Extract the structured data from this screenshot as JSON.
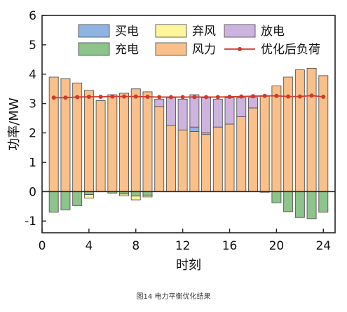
{
  "caption": "图14  电力平衡优化结果",
  "chart_data": {
    "type": "bar",
    "stacked": true,
    "xlabel": "时刻",
    "ylabel": "功率/MW",
    "xlim": [
      0,
      25
    ],
    "ylim": [
      -1.4,
      6
    ],
    "xticks": [
      0,
      4,
      8,
      12,
      16,
      20,
      24
    ],
    "yticks": [
      -1,
      0,
      1,
      2,
      3,
      4,
      5,
      6
    ],
    "legend_position": "top",
    "x": [
      1,
      2,
      3,
      4,
      5,
      6,
      7,
      8,
      9,
      10,
      11,
      12,
      13,
      14,
      15,
      16,
      17,
      18,
      19,
      20,
      21,
      22,
      23,
      24
    ],
    "series": [
      {
        "key": "wind",
        "name": "风力",
        "color": "#F9C08A",
        "values": [
          3.9,
          3.85,
          3.7,
          3.45,
          3.1,
          3.3,
          3.35,
          3.5,
          3.4,
          2.9,
          2.25,
          2.1,
          2.05,
          1.95,
          2.2,
          2.3,
          2.55,
          2.85,
          3.25,
          3.6,
          3.9,
          4.15,
          4.2,
          3.95
        ]
      },
      {
        "key": "buy",
        "name": "买电",
        "color": "#8FB4E3",
        "values": [
          0,
          0,
          0,
          0,
          0,
          0,
          0,
          0,
          0,
          0,
          0,
          0,
          0.15,
          0.05,
          0,
          0,
          0,
          0,
          0,
          0,
          0,
          0,
          0,
          0
        ]
      },
      {
        "key": "discharge",
        "name": "放电",
        "color": "#CDB4DE",
        "values": [
          0,
          0,
          0,
          0,
          0,
          0,
          0,
          0,
          0,
          0.25,
          0.95,
          1.05,
          1.1,
          1.2,
          0.95,
          0.9,
          0.65,
          0.35,
          0,
          0,
          0,
          0,
          0,
          0
        ]
      },
      {
        "key": "charge",
        "name": "充电",
        "color": "#8CC48A",
        "values": [
          -0.7,
          -0.62,
          -0.48,
          -0.1,
          0,
          -0.05,
          -0.08,
          -0.15,
          -0.12,
          0,
          0,
          0,
          0,
          0,
          0,
          0,
          0,
          0,
          -0.02,
          -0.38,
          -0.68,
          -0.88,
          -0.92,
          -0.7
        ]
      },
      {
        "key": "curtail",
        "name": "弃风",
        "color": "#FFF59A",
        "values": [
          0,
          0,
          0,
          -0.12,
          0,
          0,
          -0.06,
          -0.13,
          -0.06,
          0,
          0,
          0,
          0,
          0,
          0,
          0,
          0,
          0,
          0,
          0,
          0,
          0,
          0,
          0
        ]
      }
    ],
    "line": {
      "name": "优化后负荷",
      "color": "#D03A2A",
      "values": [
        3.2,
        3.2,
        3.22,
        3.23,
        3.23,
        3.24,
        3.24,
        3.24,
        3.23,
        3.22,
        3.22,
        3.22,
        3.22,
        3.22,
        3.22,
        3.23,
        3.24,
        3.25,
        3.26,
        3.26,
        3.24,
        3.24,
        3.27,
        3.23
      ]
    },
    "legend": [
      {
        "key": "buy",
        "label": "买电"
      },
      {
        "key": "curtail",
        "label": "弃风"
      },
      {
        "key": "discharge",
        "label": "放电"
      },
      {
        "key": "charge",
        "label": "充电"
      },
      {
        "key": "wind",
        "label": "风力"
      },
      {
        "key": "line",
        "label": "优化后负荷"
      }
    ]
  }
}
